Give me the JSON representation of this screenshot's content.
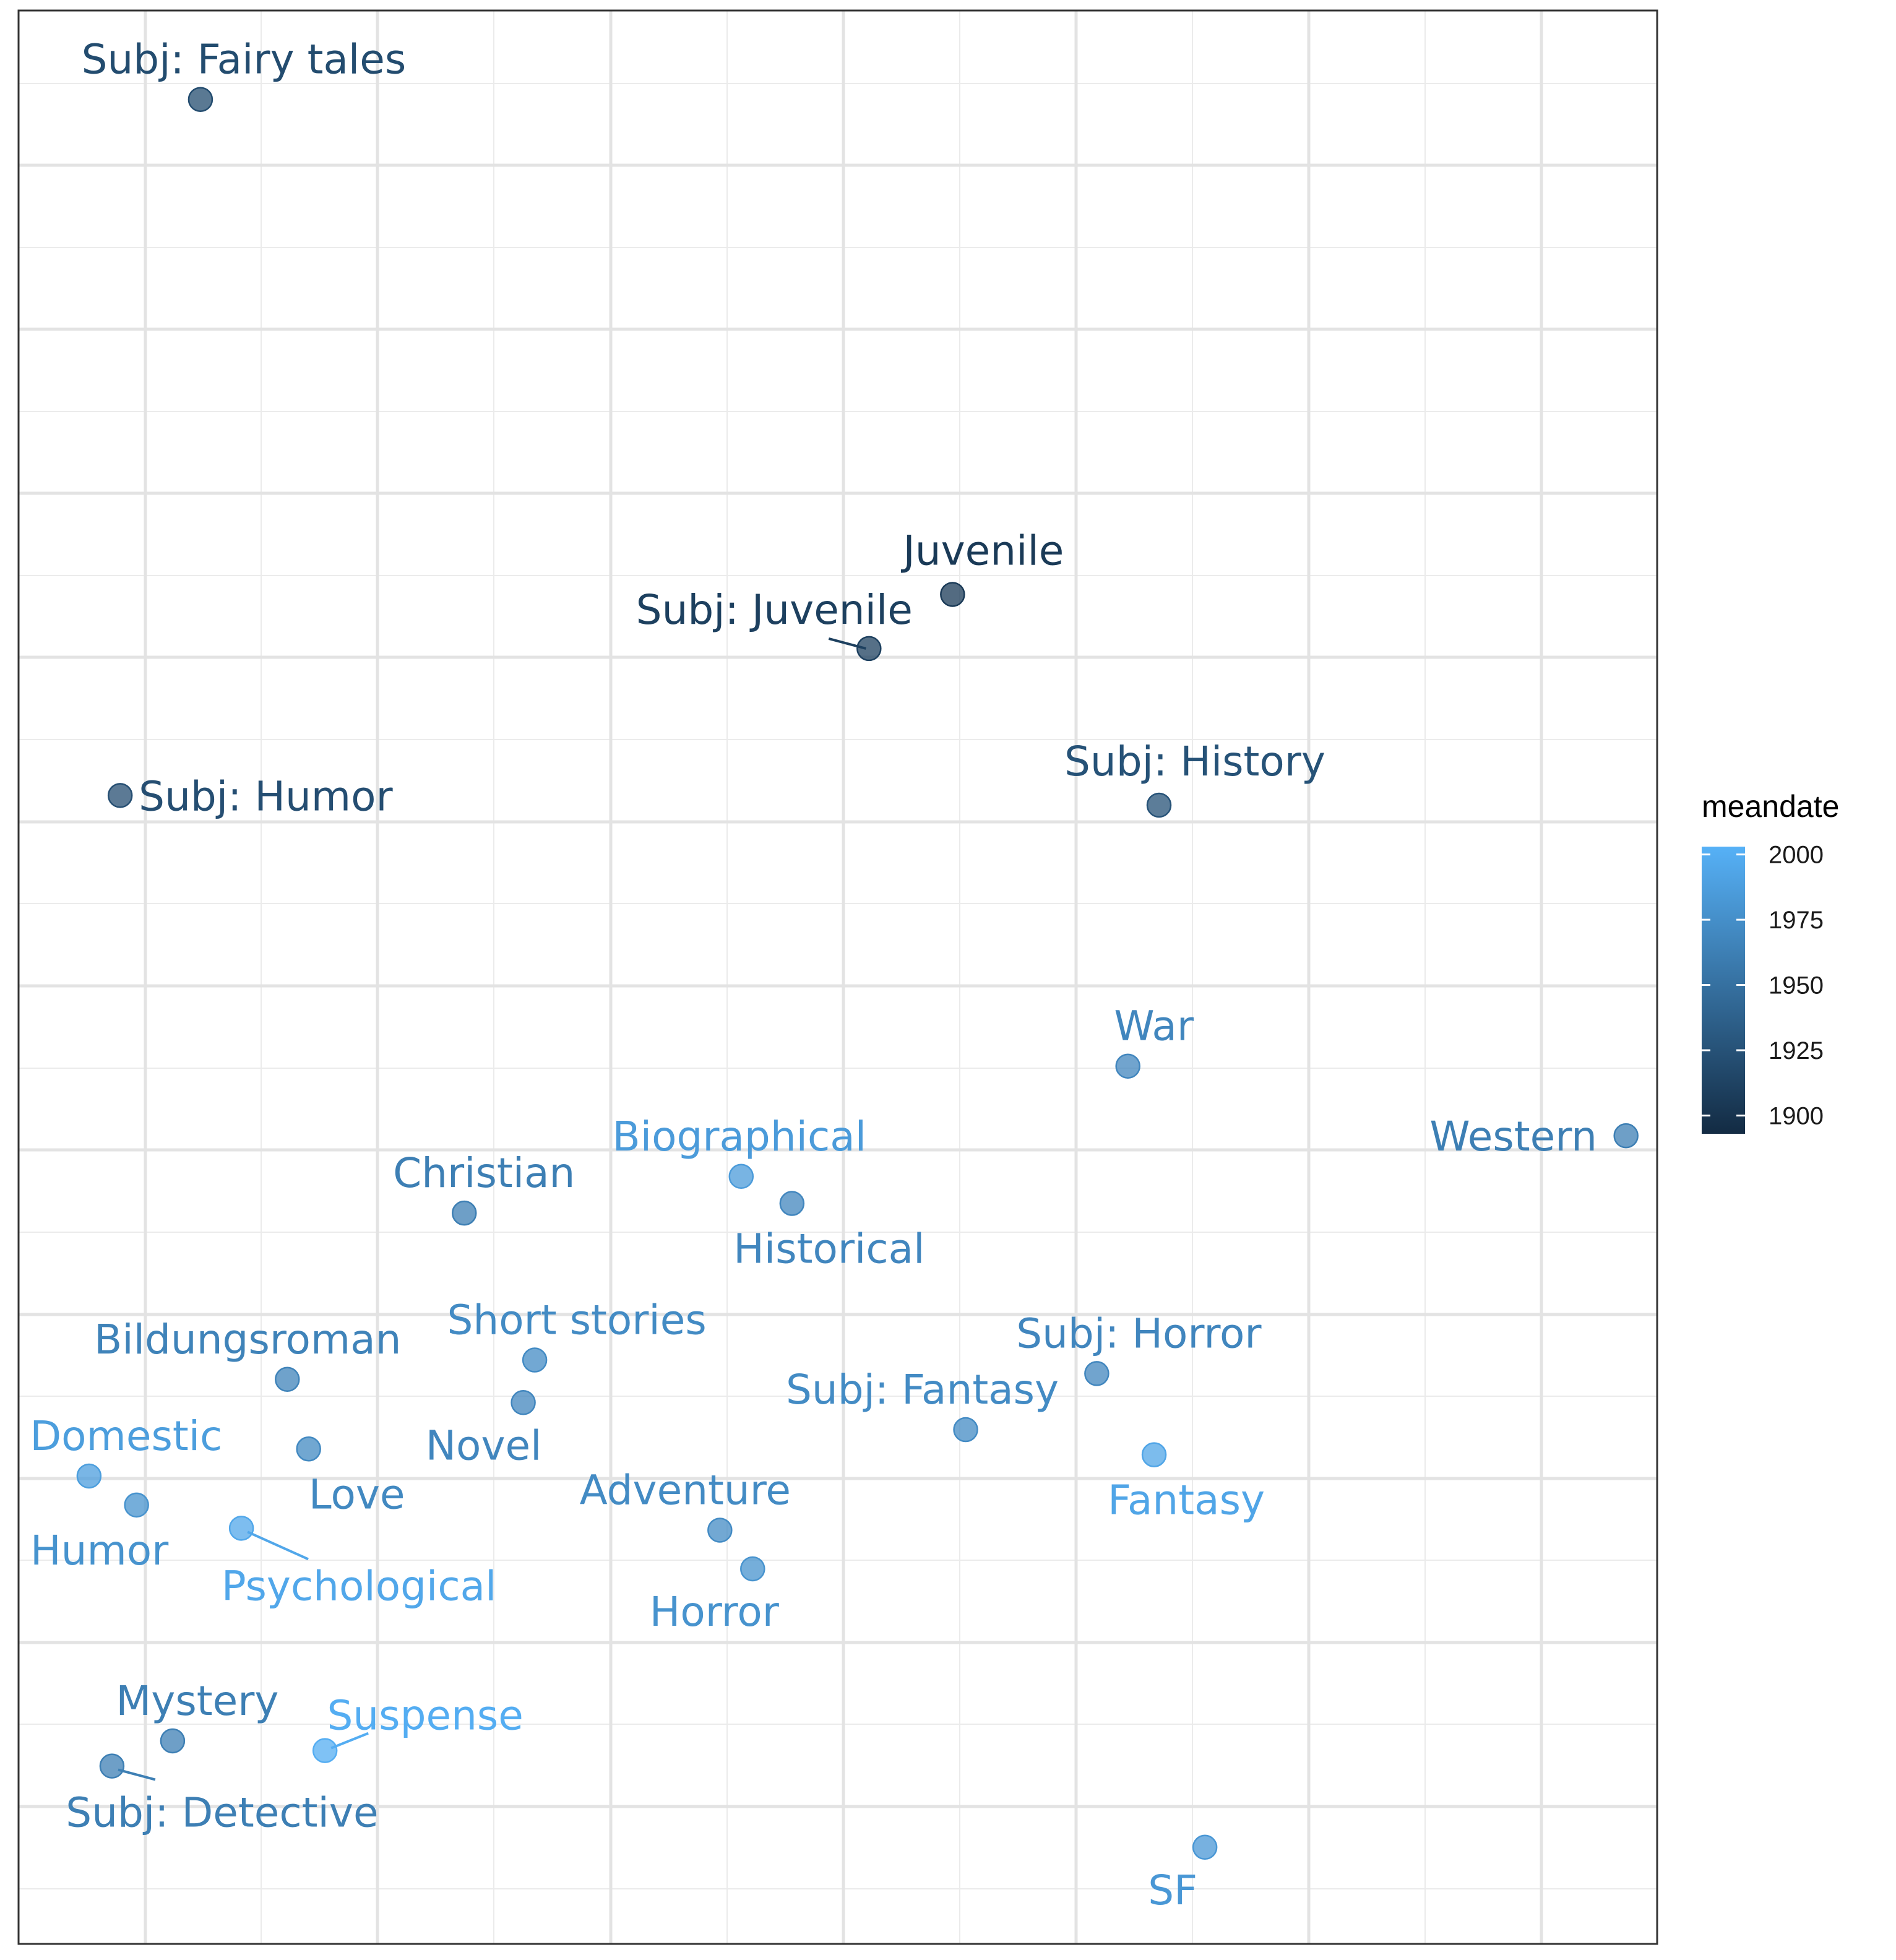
{
  "chart_data": {
    "type": "scatter",
    "title": "",
    "xlabel": "",
    "ylabel": "",
    "grid": true,
    "x_axis_ticks_shown": false,
    "y_axis_ticks_shown": false,
    "xlim": [
      0,
      1
    ],
    "ylim": [
      0,
      1
    ],
    "color_variable": "meandate",
    "legend": {
      "title": "meandate",
      "position": "right",
      "ticks": [
        1900,
        1925,
        1950,
        1975,
        2000
      ],
      "range": [
        1893,
        2003
      ],
      "colors": {
        "low": "#132B43",
        "high": "#56B1F7"
      }
    },
    "points": [
      {
        "label": "Subj: Fairy tales",
        "x": 0.111,
        "y": 0.954,
        "meandate": 1920
      },
      {
        "label": "Juvenile",
        "x": 0.57,
        "y": 0.698,
        "meandate": 1905
      },
      {
        "label": "Subj: Juvenile",
        "x": 0.519,
        "y": 0.67,
        "meandate": 1910
      },
      {
        "label": "Subj: Humor",
        "x": 0.062,
        "y": 0.594,
        "meandate": 1922
      },
      {
        "label": "Subj: History",
        "x": 0.696,
        "y": 0.589,
        "meandate": 1925
      },
      {
        "label": "War",
        "x": 0.677,
        "y": 0.454,
        "meandate": 1968
      },
      {
        "label": "Western",
        "x": 0.981,
        "y": 0.418,
        "meandate": 1962
      },
      {
        "label": "Biographical",
        "x": 0.441,
        "y": 0.397,
        "meandate": 1985
      },
      {
        "label": "Historical",
        "x": 0.472,
        "y": 0.383,
        "meandate": 1968
      },
      {
        "label": "Christian",
        "x": 0.272,
        "y": 0.378,
        "meandate": 1962
      },
      {
        "label": "Short stories",
        "x": 0.315,
        "y": 0.302,
        "meandate": 1972
      },
      {
        "label": "Bildungsroman",
        "x": 0.164,
        "y": 0.292,
        "meandate": 1965
      },
      {
        "label": "Novel",
        "x": 0.308,
        "y": 0.28,
        "meandate": 1968
      },
      {
        "label": "Subj: Horror",
        "x": 0.658,
        "y": 0.295,
        "meandate": 1968
      },
      {
        "label": "Subj: Fantasy",
        "x": 0.578,
        "y": 0.266,
        "meandate": 1972
      },
      {
        "label": "Love",
        "x": 0.177,
        "y": 0.256,
        "meandate": 1970
      },
      {
        "label": "Fantasy",
        "x": 0.693,
        "y": 0.253,
        "meandate": 1993
      },
      {
        "label": "Domestic",
        "x": 0.043,
        "y": 0.242,
        "meandate": 1987
      },
      {
        "label": "Humor",
        "x": 0.072,
        "y": 0.227,
        "meandate": 1978
      },
      {
        "label": "Psychological",
        "x": 0.136,
        "y": 0.215,
        "meandate": 1995
      },
      {
        "label": "Adventure",
        "x": 0.428,
        "y": 0.214,
        "meandate": 1972
      },
      {
        "label": "Horror",
        "x": 0.448,
        "y": 0.194,
        "meandate": 1978
      },
      {
        "label": "Mystery",
        "x": 0.094,
        "y": 0.105,
        "meandate": 1962
      },
      {
        "label": "Subj: Detective",
        "x": 0.057,
        "y": 0.092,
        "meandate": 1962
      },
      {
        "label": "Suspense",
        "x": 0.187,
        "y": 0.1,
        "meandate": 2000
      },
      {
        "label": "SF",
        "x": 0.724,
        "y": 0.05,
        "meandate": 1982
      }
    ]
  }
}
